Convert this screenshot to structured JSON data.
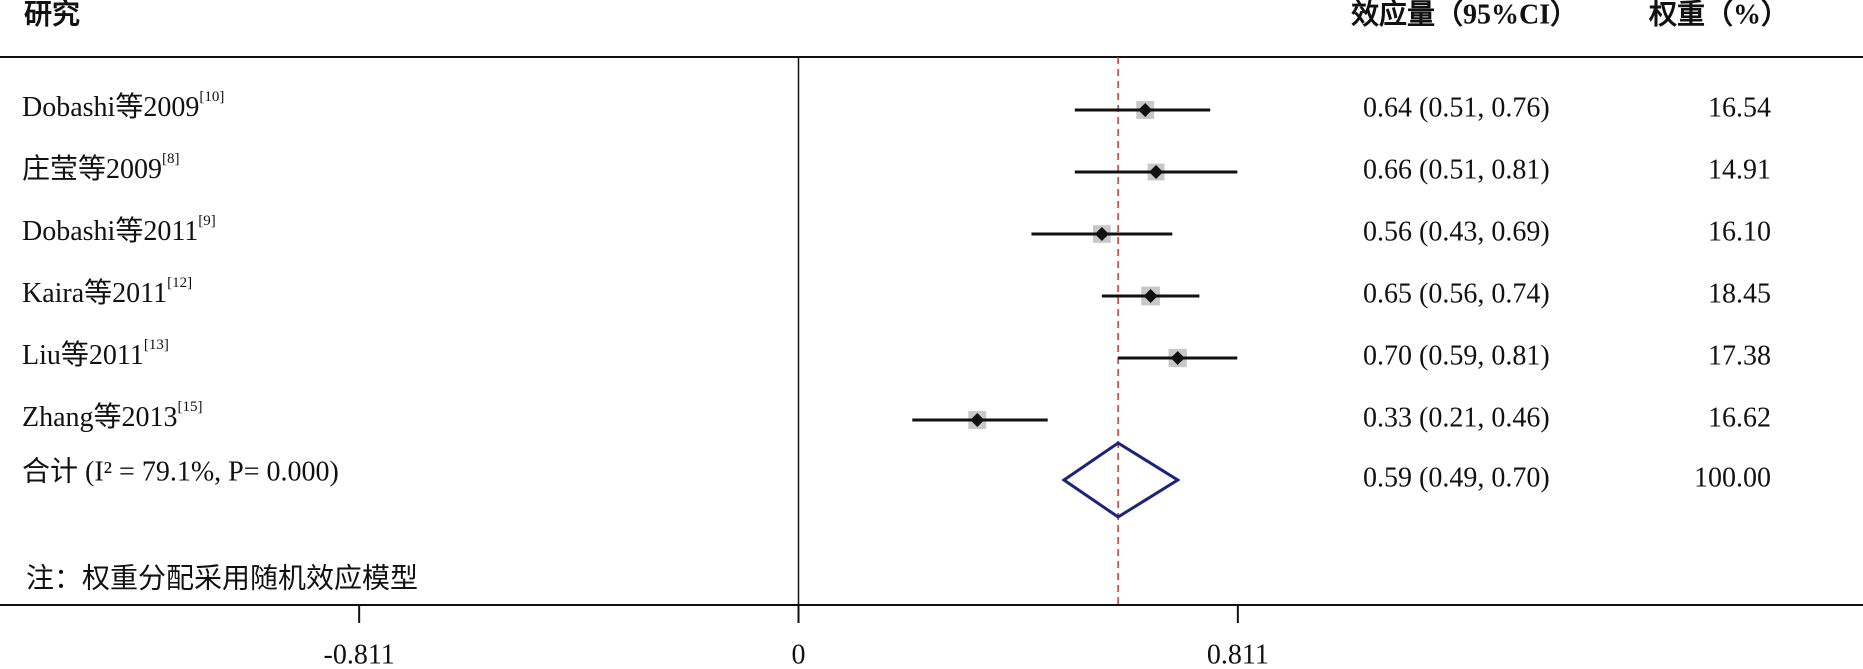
{
  "chart_data": {
    "type": "forest",
    "header_study": "研究",
    "header_effect": "效应量（95%CI）",
    "header_weight": "权重（%）",
    "xlim": [
      -1.474,
      1.965
    ],
    "xticks": [
      -0.811,
      0,
      0.811
    ],
    "studies": [
      {
        "name": "Dobashi等2009",
        "ref": "[10]",
        "effect": 0.64,
        "lower": 0.51,
        "upper": 0.76,
        "effect_label": "0.64 (0.51, 0.76)",
        "weight": 16.54,
        "weight_label": "16.54"
      },
      {
        "name": "庄莹等2009",
        "ref": "[8]",
        "effect": 0.66,
        "lower": 0.51,
        "upper": 0.81,
        "effect_label": "0.66 (0.51, 0.81)",
        "weight": 14.91,
        "weight_label": "14.91"
      },
      {
        "name": "Dobashi等2011",
        "ref": "[9]",
        "effect": 0.56,
        "lower": 0.43,
        "upper": 0.69,
        "effect_label": "0.56 (0.43, 0.69)",
        "weight": 16.1,
        "weight_label": "16.10"
      },
      {
        "name": "Kaira等2011",
        "ref": "[12]",
        "effect": 0.65,
        "lower": 0.56,
        "upper": 0.74,
        "effect_label": "0.65 (0.56, 0.74)",
        "weight": 18.45,
        "weight_label": "18.45"
      },
      {
        "name": "Liu等2011",
        "ref": "[13]",
        "effect": 0.7,
        "lower": 0.59,
        "upper": 0.81,
        "effect_label": "0.70 (0.59, 0.81)",
        "weight": 17.38,
        "weight_label": "17.38"
      },
      {
        "name": "Zhang等2013",
        "ref": "[15]",
        "effect": 0.33,
        "lower": 0.21,
        "upper": 0.46,
        "effect_label": "0.33 (0.21, 0.46)",
        "weight": 16.62,
        "weight_label": "16.62"
      }
    ],
    "summary": {
      "name": "合计 (I² = 79.1%, P= 0.000)",
      "effect": 0.59,
      "lower": 0.49,
      "upper": 0.7,
      "effect_label": "0.59 (0.49, 0.70)",
      "weight": 100.0,
      "weight_label": "100.00"
    },
    "note": "注：权重分配采用随机效应模型"
  }
}
